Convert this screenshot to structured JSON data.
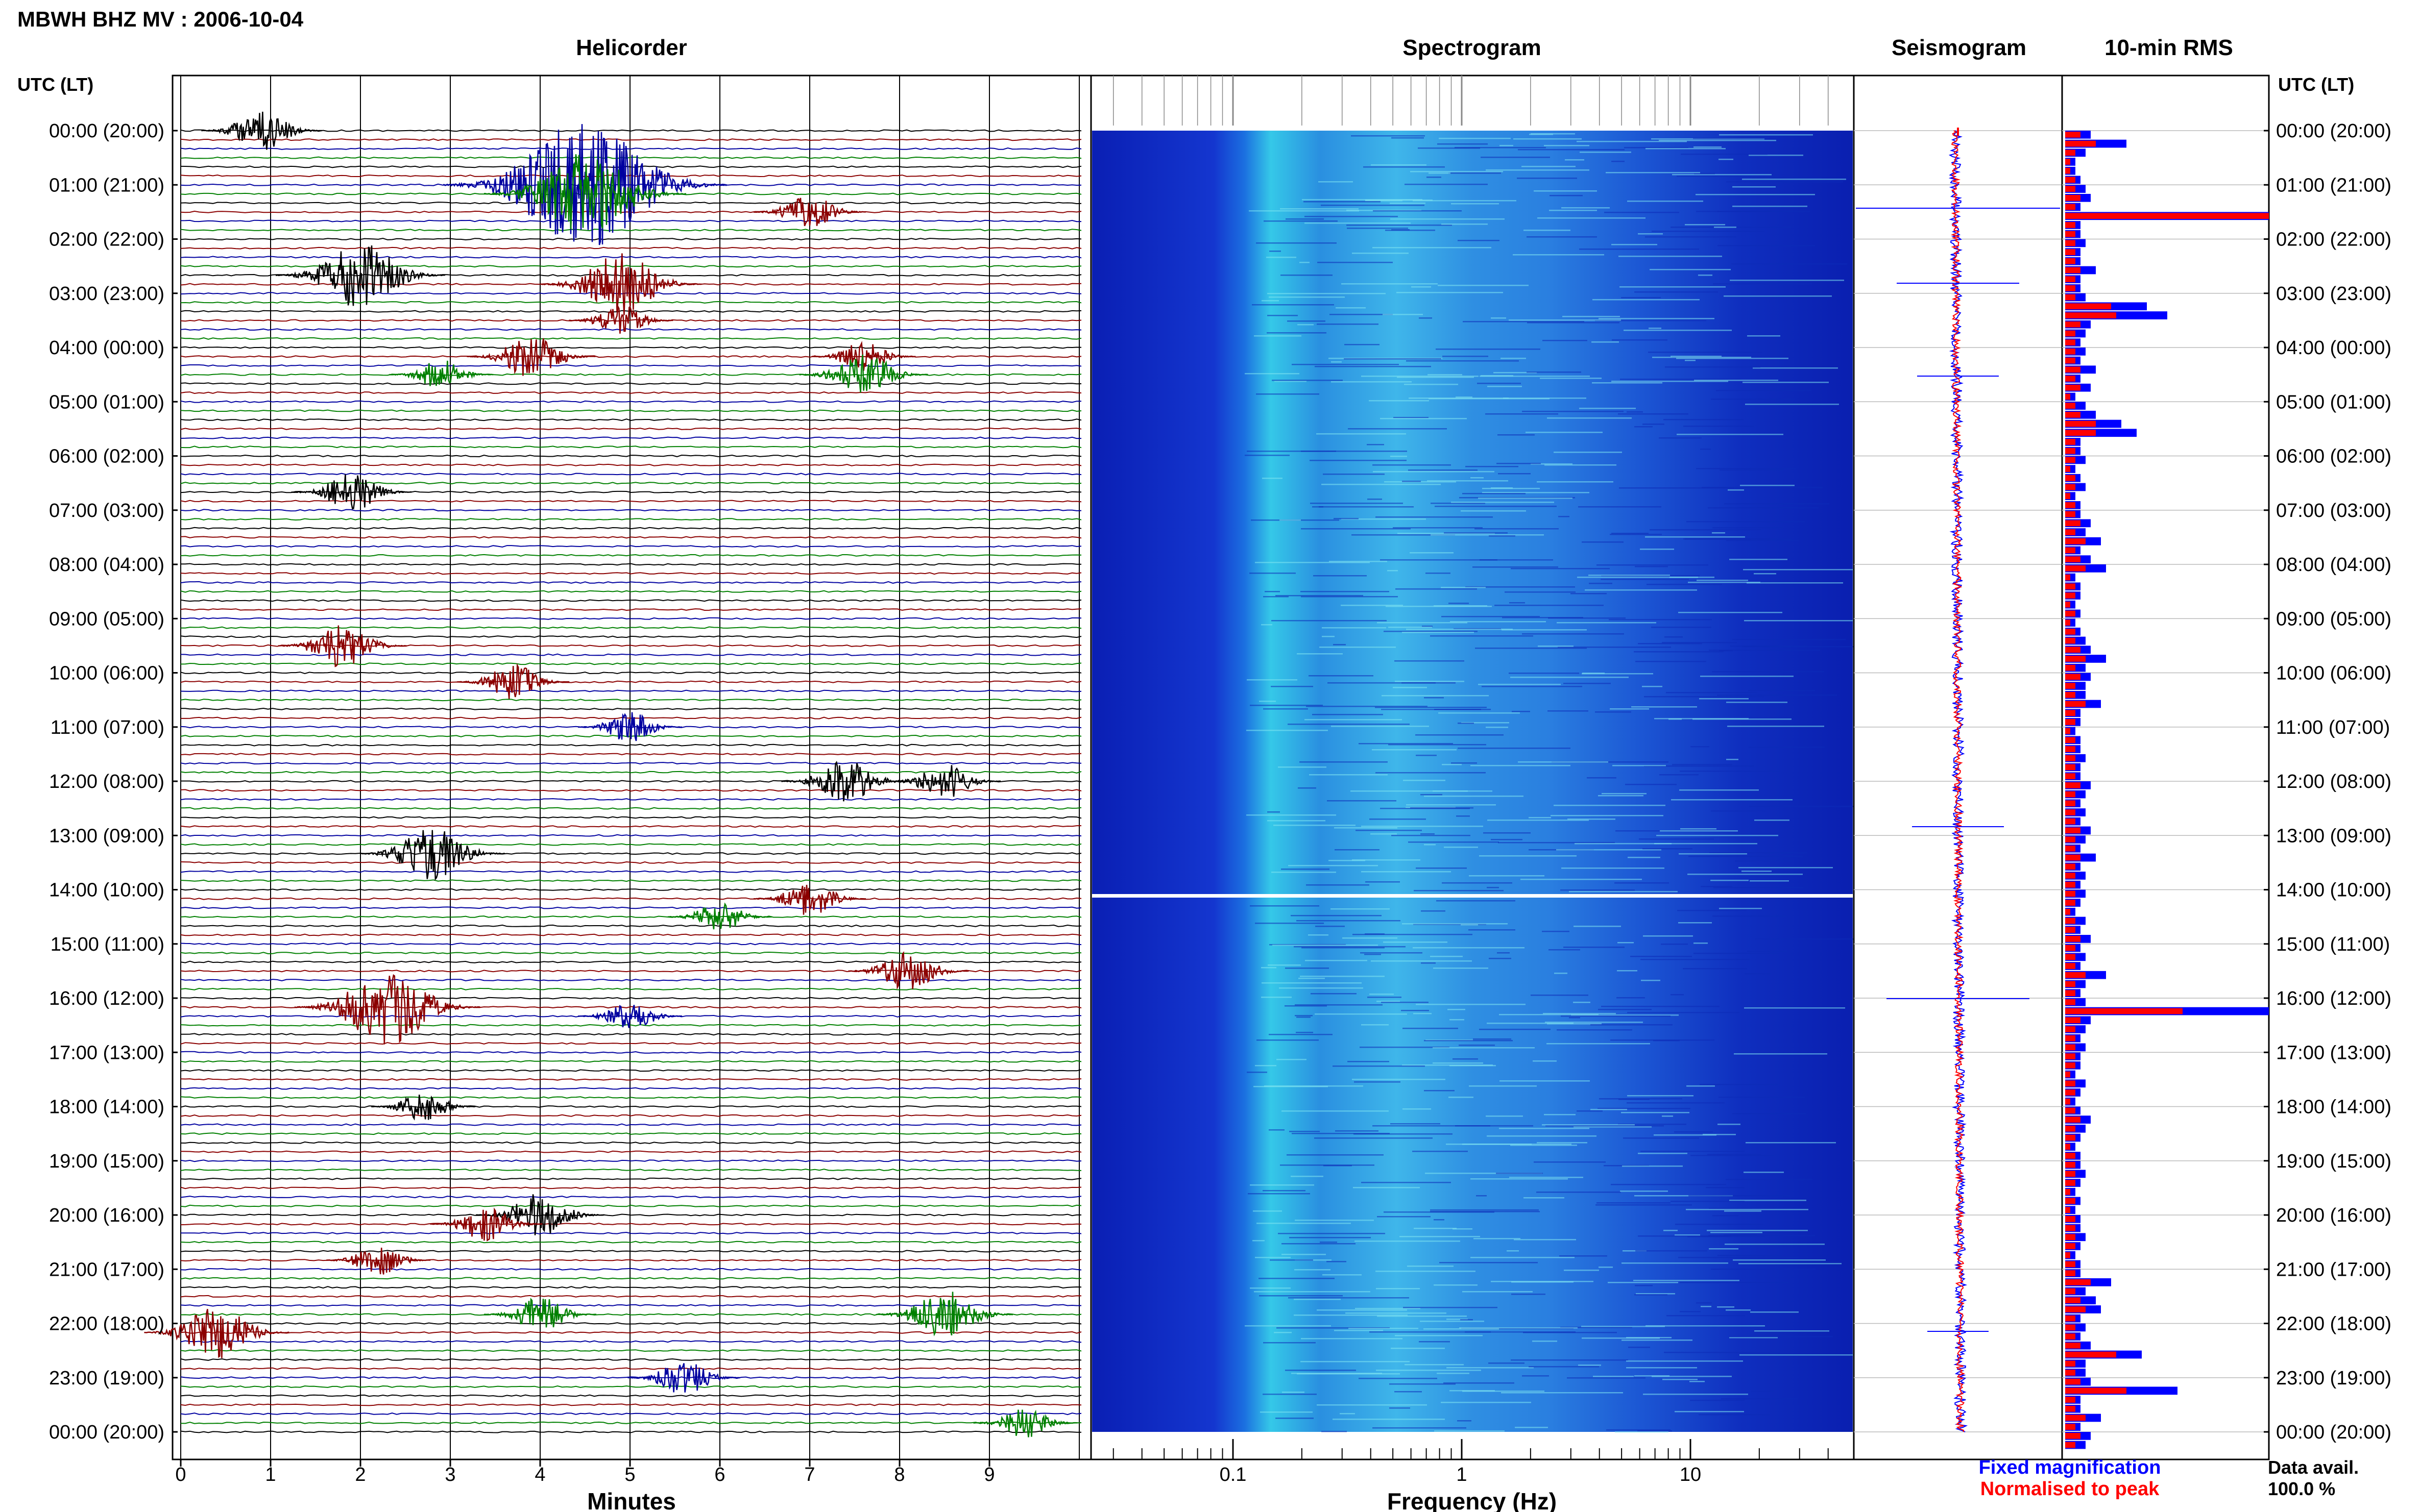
{
  "header": {
    "title": "MBWH BHZ MV : 2006-10-04",
    "utc_label": "UTC (LT)"
  },
  "panels": {
    "helicorder": "Helicorder",
    "spectrogram": "Spectrogram",
    "seismogram": "Seismogram",
    "rms": "10-min RMS"
  },
  "time_labels": [
    "00:00 (20:00)",
    "01:00 (21:00)",
    "02:00 (22:00)",
    "03:00 (23:00)",
    "04:00 (00:00)",
    "05:00 (01:00)",
    "06:00 (02:00)",
    "07:00 (03:00)",
    "08:00 (04:00)",
    "09:00 (05:00)",
    "10:00 (06:00)",
    "11:00 (07:00)",
    "12:00 (08:00)",
    "13:00 (09:00)",
    "14:00 (10:00)",
    "15:00 (11:00)",
    "16:00 (12:00)",
    "17:00 (13:00)",
    "18:00 (14:00)",
    "19:00 (15:00)",
    "20:00 (16:00)",
    "21:00 (17:00)",
    "22:00 (18:00)",
    "23:00 (19:00)",
    "00:00 (20:00)"
  ],
  "helicorder_axis": {
    "label": "Minutes",
    "ticks": [
      "0",
      "1",
      "2",
      "3",
      "4",
      "5",
      "6",
      "7",
      "8",
      "9"
    ]
  },
  "spectrogram_axis": {
    "label": "Frequency (Hz)",
    "ticks": [
      "0.1",
      "1",
      "10"
    ]
  },
  "legend": {
    "fixed": "Fixed magnification",
    "normalised": "Normalised to peak",
    "fixed_color": "#0000ff",
    "normalised_color": "#ff0000"
  },
  "data_avail": {
    "label": "Data avail.",
    "value": "100.0 %"
  },
  "chart_data": {
    "type": "bar",
    "rows_per_hour": 6,
    "hours": 24,
    "helicorder_colors": [
      "#000000",
      "#8b0000",
      "#0000a0",
      "#008000"
    ],
    "helicorder_events": [
      {
        "row": 0,
        "minute": 0.9,
        "amp": 0.6
      },
      {
        "row": 6,
        "minute": 4.5,
        "amp": 2.6
      },
      {
        "row": 7,
        "minute": 4.5,
        "amp": 1.6
      },
      {
        "row": 9,
        "minute": 7.0,
        "amp": 0.5
      },
      {
        "row": 16,
        "minute": 2.0,
        "amp": 1.2
      },
      {
        "row": 17,
        "minute": 4.9,
        "amp": 1.1
      },
      {
        "row": 21,
        "minute": 4.9,
        "amp": 0.4
      },
      {
        "row": 25,
        "minute": 3.9,
        "amp": 0.7
      },
      {
        "row": 25,
        "minute": 7.6,
        "amp": 0.4
      },
      {
        "row": 27,
        "minute": 7.6,
        "amp": 0.7
      },
      {
        "row": 27,
        "minute": 2.9,
        "amp": 0.4
      },
      {
        "row": 40,
        "minute": 1.9,
        "amp": 0.6
      },
      {
        "row": 57,
        "minute": 1.8,
        "amp": 0.7
      },
      {
        "row": 61,
        "minute": 3.7,
        "amp": 0.5
      },
      {
        "row": 66,
        "minute": 5.0,
        "amp": 0.4
      },
      {
        "row": 72,
        "minute": 7.4,
        "amp": 0.7
      },
      {
        "row": 72,
        "minute": 8.5,
        "amp": 0.5
      },
      {
        "row": 80,
        "minute": 2.8,
        "amp": 0.9
      },
      {
        "row": 85,
        "minute": 7.0,
        "amp": 0.5
      },
      {
        "row": 87,
        "minute": 6.0,
        "amp": 0.4
      },
      {
        "row": 93,
        "minute": 8.1,
        "amp": 0.6
      },
      {
        "row": 97,
        "minute": 2.3,
        "amp": 1.4
      },
      {
        "row": 98,
        "minute": 5.0,
        "amp": 0.4
      },
      {
        "row": 108,
        "minute": 2.7,
        "amp": 0.4
      },
      {
        "row": 120,
        "minute": 4.0,
        "amp": 0.7
      },
      {
        "row": 121,
        "minute": 3.4,
        "amp": 0.5
      },
      {
        "row": 125,
        "minute": 2.2,
        "amp": 0.4
      },
      {
        "row": 131,
        "minute": 4.0,
        "amp": 0.5
      },
      {
        "row": 131,
        "minute": 8.5,
        "amp": 0.8
      },
      {
        "row": 133,
        "minute": 0.4,
        "amp": 0.9
      },
      {
        "row": 138,
        "minute": 5.6,
        "amp": 0.5
      },
      {
        "row": 143,
        "minute": 9.4,
        "amp": 0.4
      }
    ],
    "rms_blue": [
      0.5,
      1.2,
      0.4,
      0.2,
      0.2,
      0.3,
      0.4,
      0.5,
      0.3,
      4.4,
      0.3,
      0.3,
      0.4,
      0.3,
      0.3,
      0.6,
      0.3,
      0.3,
      0.4,
      1.6,
      2.0,
      0.5,
      0.4,
      0.3,
      0.4,
      0.3,
      0.6,
      0.3,
      0.5,
      0.2,
      0.4,
      0.6,
      1.1,
      1.4,
      0.3,
      0.3,
      0.4,
      0.2,
      0.3,
      0.4,
      0.2,
      0.3,
      0.3,
      0.5,
      0.4,
      0.7,
      0.3,
      0.5,
      0.8,
      0.2,
      0.3,
      0.3,
      0.2,
      0.3,
      0.2,
      0.3,
      0.4,
      0.5,
      0.8,
      0.4,
      0.5,
      0.4,
      0.4,
      0.7,
      0.3,
      0.3,
      0.2,
      0.3,
      0.3,
      0.4,
      0.3,
      0.3,
      0.5,
      0.4,
      0.3,
      0.4,
      0.3,
      0.5,
      0.4,
      0.3,
      0.6,
      0.3,
      0.4,
      0.3,
      0.4,
      0.3,
      0.2,
      0.4,
      0.3,
      0.5,
      0.3,
      0.4,
      0.3,
      0.8,
      0.4,
      0.3,
      0.4,
      4.2,
      0.5,
      0.4,
      0.3,
      0.4,
      0.3,
      0.3,
      0.2,
      0.4,
      0.3,
      0.2,
      0.3,
      0.5,
      0.4,
      0.3,
      0.2,
      0.3,
      0.3,
      0.4,
      0.3,
      0.2,
      0.3,
      0.2,
      0.3,
      0.3,
      0.4,
      0.3,
      0.2,
      0.3,
      0.3,
      0.9,
      0.4,
      0.6,
      0.7,
      0.3,
      0.4,
      0.3,
      0.5,
      1.5,
      0.4,
      0.4,
      0.5,
      2.2,
      0.3,
      0.3,
      0.7,
      0.3,
      0.5,
      0.4
    ],
    "rms_red": [
      0.3,
      0.6,
      0.2,
      0.1,
      0.1,
      0.2,
      0.2,
      0.3,
      0.2,
      4.4,
      0.2,
      0.2,
      0.2,
      0.2,
      0.2,
      0.3,
      0.2,
      0.2,
      0.2,
      0.9,
      1.0,
      0.3,
      0.2,
      0.2,
      0.2,
      0.2,
      0.3,
      0.2,
      0.3,
      0.1,
      0.2,
      0.3,
      0.6,
      0.6,
      0.2,
      0.2,
      0.2,
      0.1,
      0.2,
      0.2,
      0.1,
      0.2,
      0.2,
      0.3,
      0.2,
      0.4,
      0.2,
      0.3,
      0.4,
      0.1,
      0.2,
      0.2,
      0.1,
      0.2,
      0.1,
      0.2,
      0.2,
      0.3,
      0.4,
      0.2,
      0.3,
      0.2,
      0.2,
      0.4,
      0.2,
      0.2,
      0.1,
      0.2,
      0.2,
      0.2,
      0.2,
      0.2,
      0.3,
      0.2,
      0.2,
      0.2,
      0.2,
      0.3,
      0.2,
      0.2,
      0.3,
      0.2,
      0.2,
      0.2,
      0.2,
      0.2,
      0.1,
      0.2,
      0.2,
      0.3,
      0.2,
      0.2,
      0.2,
      0.4,
      0.2,
      0.2,
      0.2,
      2.3,
      0.3,
      0.2,
      0.2,
      0.2,
      0.2,
      0.2,
      0.1,
      0.2,
      0.2,
      0.1,
      0.2,
      0.3,
      0.2,
      0.2,
      0.1,
      0.2,
      0.2,
      0.2,
      0.2,
      0.1,
      0.2,
      0.1,
      0.2,
      0.2,
      0.2,
      0.2,
      0.1,
      0.2,
      0.2,
      0.5,
      0.2,
      0.3,
      0.4,
      0.2,
      0.2,
      0.2,
      0.3,
      1.0,
      0.2,
      0.2,
      0.3,
      1.2,
      0.2,
      0.2,
      0.4,
      0.2,
      0.3,
      0.2
    ]
  }
}
